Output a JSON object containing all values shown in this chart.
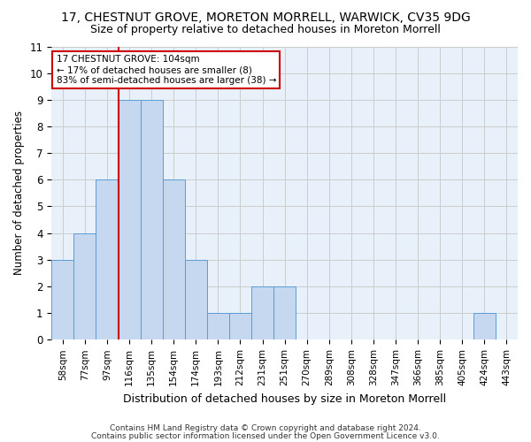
{
  "title": "17, CHESTNUT GROVE, MORETON MORRELL, WARWICK, CV35 9DG",
  "subtitle": "Size of property relative to detached houses in Moreton Morrell",
  "xlabel": "Distribution of detached houses by size in Moreton Morrell",
  "ylabel": "Number of detached properties",
  "footer1": "Contains HM Land Registry data © Crown copyright and database right 2024.",
  "footer2": "Contains public sector information licensed under the Open Government Licence v3.0.",
  "annotation_line1": "17 CHESTNUT GROVE: 104sqm",
  "annotation_line2": "← 17% of detached houses are smaller (8)",
  "annotation_line3": "83% of semi-detached houses are larger (38) →",
  "categories": [
    "58sqm",
    "77sqm",
    "97sqm",
    "116sqm",
    "135sqm",
    "154sqm",
    "174sqm",
    "193sqm",
    "212sqm",
    "231sqm",
    "251sqm",
    "270sqm",
    "289sqm",
    "308sqm",
    "328sqm",
    "347sqm",
    "366sqm",
    "385sqm",
    "405sqm",
    "424sqm",
    "443sqm"
  ],
  "values": [
    3,
    4,
    6,
    9,
    9,
    6,
    3,
    1,
    1,
    2,
    2,
    0,
    0,
    0,
    0,
    0,
    0,
    0,
    0,
    1,
    0
  ],
  "bar_color": "#c5d8f0",
  "bar_edge_color": "#5b9bd5",
  "reference_line_color": "#cc0000",
  "annotation_box_edge_color": "#cc0000",
  "ylim": [
    0,
    11
  ],
  "yticks": [
    0,
    1,
    2,
    3,
    4,
    5,
    6,
    7,
    8,
    9,
    10,
    11
  ],
  "grid_color": "#cccccc",
  "bg_color": "#e8f0fa",
  "title_fontsize": 10,
  "subtitle_fontsize": 9,
  "axis_label_fontsize": 8.5,
  "tick_fontsize": 7.5,
  "footer_fontsize": 6.5
}
